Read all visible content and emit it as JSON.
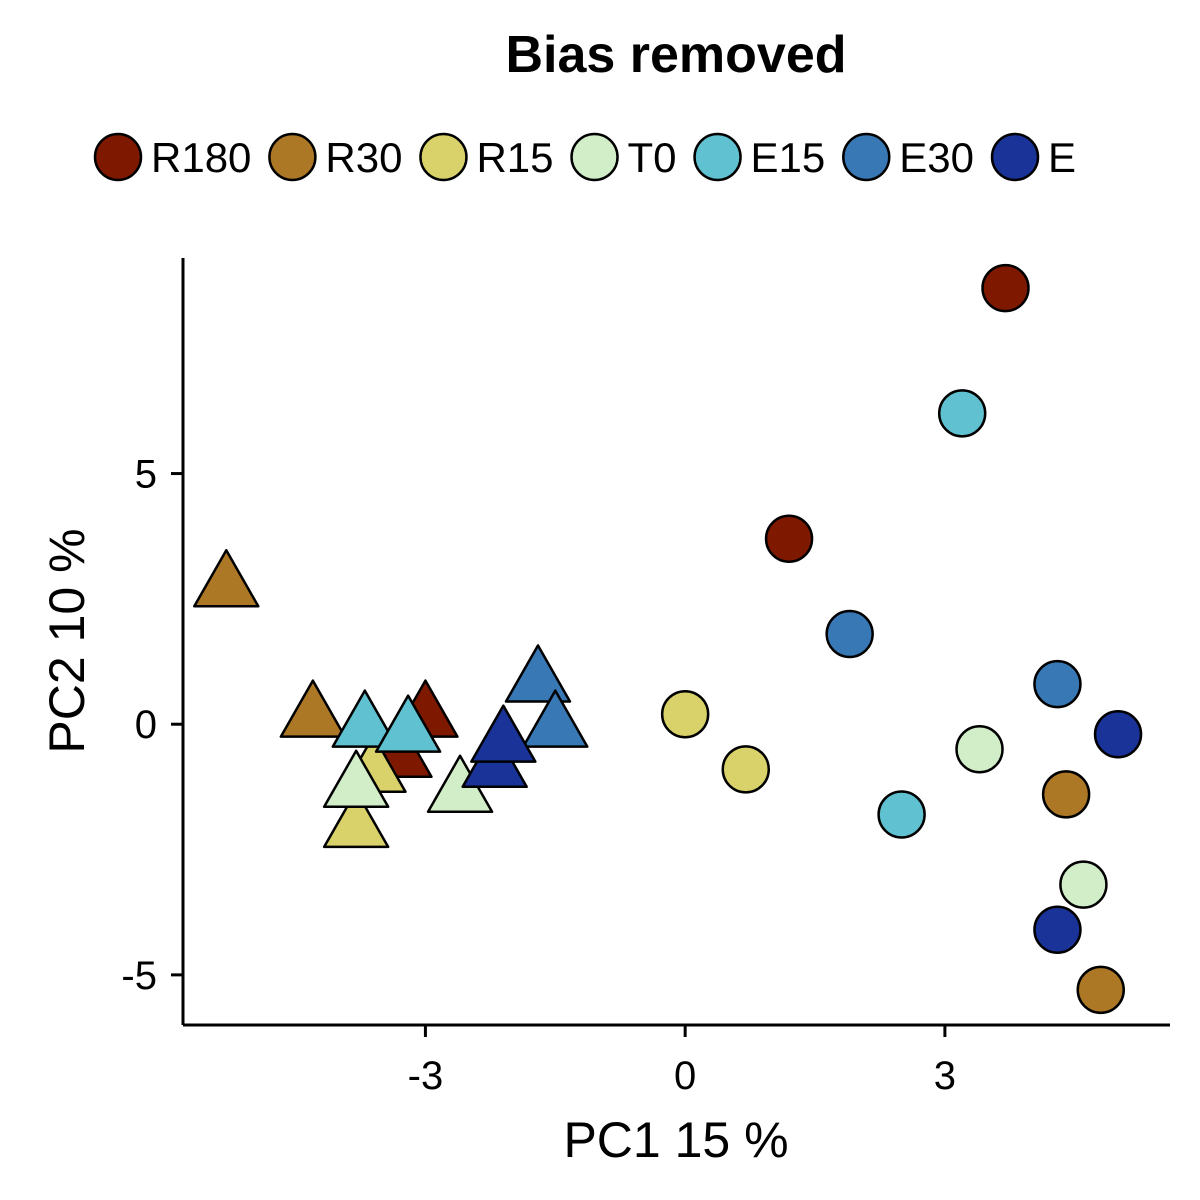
{
  "chart_data": {
    "type": "scatter",
    "title": "Bias removed",
    "xlabel": "PC1 15 %",
    "ylabel": "PC2 10 %",
    "xlim": [
      -5.8,
      5.6
    ],
    "ylim": [
      -6.0,
      9.3
    ],
    "xticks": [
      {
        "value": -3,
        "label": "-3"
      },
      {
        "value": 0,
        "label": "0"
      },
      {
        "value": 3,
        "label": "3"
      }
    ],
    "yticks": [
      {
        "value": -5,
        "label": "-5"
      },
      {
        "value": 0,
        "label": "0"
      },
      {
        "value": 5,
        "label": "5"
      }
    ],
    "legend": {
      "position": "top",
      "entries": [
        {
          "label": "R180",
          "color": "#7e1900"
        },
        {
          "label": "R30",
          "color": "#ac7825"
        },
        {
          "label": "R15",
          "color": "#d9d26a"
        },
        {
          "label": "T0",
          "color": "#d2eec9"
        },
        {
          "label": "E15",
          "color": "#60c1d0"
        },
        {
          "label": "E30",
          "color": "#3778b5"
        },
        {
          "label": "E",
          "color": "#1a3399"
        }
      ]
    },
    "series": [
      {
        "name": "R180",
        "color": "#7e1900",
        "points": [
          {
            "x": -3.3,
            "y": -0.6,
            "shape": "triangle"
          },
          {
            "x": -3.0,
            "y": 0.2,
            "shape": "triangle"
          },
          {
            "x": 1.2,
            "y": 3.7,
            "shape": "circle"
          },
          {
            "x": 3.7,
            "y": 8.7,
            "shape": "circle"
          }
        ]
      },
      {
        "name": "R30",
        "color": "#ac7825",
        "points": [
          {
            "x": -5.3,
            "y": 2.8,
            "shape": "triangle"
          },
          {
            "x": -4.3,
            "y": 0.2,
            "shape": "triangle"
          },
          {
            "x": 4.4,
            "y": -1.4,
            "shape": "circle"
          },
          {
            "x": 4.8,
            "y": -5.3,
            "shape": "circle"
          }
        ]
      },
      {
        "name": "R15",
        "color": "#d9d26a",
        "points": [
          {
            "x": -3.8,
            "y": -2.0,
            "shape": "triangle"
          },
          {
            "x": -3.6,
            "y": -0.9,
            "shape": "triangle"
          },
          {
            "x": 0.0,
            "y": 0.2,
            "shape": "circle"
          },
          {
            "x": 0.7,
            "y": -0.9,
            "shape": "circle"
          }
        ]
      },
      {
        "name": "T0",
        "color": "#d2eec9",
        "points": [
          {
            "x": -3.8,
            "y": -1.2,
            "shape": "triangle"
          },
          {
            "x": -2.6,
            "y": -1.3,
            "shape": "triangle"
          },
          {
            "x": 3.4,
            "y": -0.5,
            "shape": "circle"
          },
          {
            "x": 4.6,
            "y": -3.2,
            "shape": "circle"
          }
        ]
      },
      {
        "name": "E15",
        "color": "#60c1d0",
        "points": [
          {
            "x": -3.7,
            "y": 0.0,
            "shape": "triangle"
          },
          {
            "x": -3.2,
            "y": -0.1,
            "shape": "triangle"
          },
          {
            "x": 2.5,
            "y": -1.8,
            "shape": "circle"
          },
          {
            "x": 3.2,
            "y": 6.2,
            "shape": "circle"
          }
        ]
      },
      {
        "name": "E30",
        "color": "#3778b5",
        "points": [
          {
            "x": -1.7,
            "y": 0.9,
            "shape": "triangle"
          },
          {
            "x": -1.5,
            "y": 0.0,
            "shape": "triangle"
          },
          {
            "x": 1.9,
            "y": 1.8,
            "shape": "circle"
          },
          {
            "x": 4.3,
            "y": 0.8,
            "shape": "circle"
          }
        ]
      },
      {
        "name": "E",
        "color": "#1a3399",
        "points": [
          {
            "x": -2.2,
            "y": -0.8,
            "shape": "triangle"
          },
          {
            "x": -2.1,
            "y": -0.3,
            "shape": "triangle"
          },
          {
            "x": 4.3,
            "y": -4.1,
            "shape": "circle"
          },
          {
            "x": 5.0,
            "y": -0.2,
            "shape": "circle"
          }
        ]
      }
    ]
  }
}
